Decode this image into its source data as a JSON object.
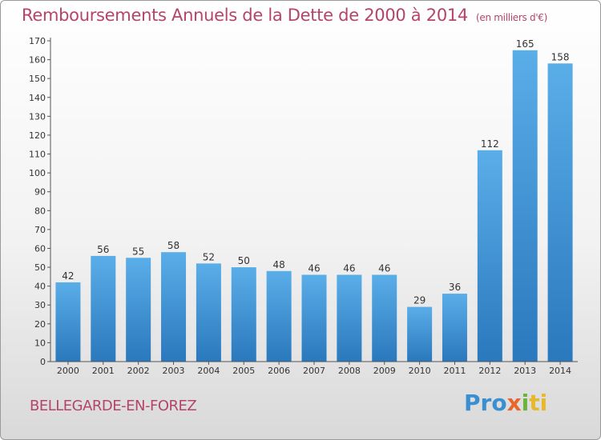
{
  "header": {
    "title": "Remboursements Annuels de la Dette de 2000 à 2014",
    "unit": "(en milliers d'€)"
  },
  "footer": {
    "commune": "BELLEGARDE-EN-FOREZ",
    "logo_text": "Proxiti"
  },
  "colors": {
    "title": "#b4446c",
    "bar_light": "#5aaee8",
    "bar_dark": "#2a78bd"
  },
  "chart_data": {
    "type": "bar",
    "title": "Remboursements Annuels de la Dette de 2000 à 2014",
    "xlabel": "",
    "ylabel": "",
    "categories": [
      "2000",
      "2001",
      "2002",
      "2003",
      "2004",
      "2005",
      "2006",
      "2007",
      "2008",
      "2009",
      "2010",
      "2011",
      "2012",
      "2013",
      "2014"
    ],
    "values": [
      42,
      56,
      55,
      58,
      52,
      50,
      48,
      46,
      46,
      46,
      29,
      36,
      112,
      165,
      158
    ],
    "ylim": [
      0,
      170
    ],
    "yticks": [
      0,
      10,
      20,
      30,
      40,
      50,
      60,
      70,
      80,
      90,
      100,
      110,
      120,
      130,
      140,
      150,
      160,
      170
    ],
    "grid": false,
    "legend": "none"
  }
}
